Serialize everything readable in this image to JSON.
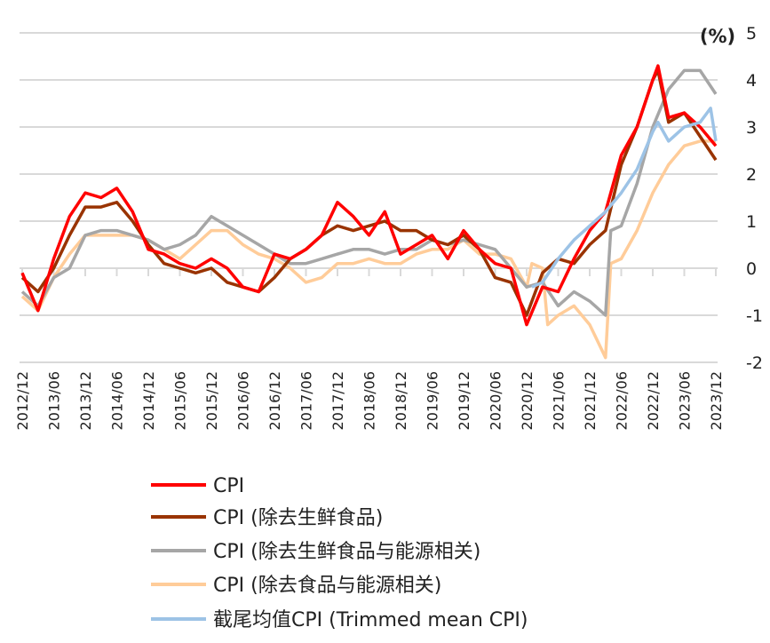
{
  "chart_data": {
    "type": "line",
    "unit_label": "(%)",
    "ylim": [
      -2,
      5
    ],
    "yticks": [
      5,
      4,
      3,
      2,
      1,
      0,
      -1,
      -2
    ],
    "xlim": [
      "2012/12",
      "2023/12"
    ],
    "xticks": [
      "2012/12",
      "2013/06",
      "2013/12",
      "2014/06",
      "2014/12",
      "2015/06",
      "2015/12",
      "2016/06",
      "2016/12",
      "2017/06",
      "2017/12",
      "2018/06",
      "2018/12",
      "2019/06",
      "2019/12",
      "2020/06",
      "2020/12",
      "2021/06",
      "2021/12",
      "2022/06",
      "2022/12",
      "2023/06",
      "2023/12"
    ],
    "grid": true,
    "legend_position": "bottom",
    "series": [
      {
        "name": "CPI",
        "color": "#ff0000",
        "x": [
          "2012/12",
          "2013/03",
          "2013/06",
          "2013/09",
          "2013/12",
          "2014/03",
          "2014/06",
          "2014/09",
          "2014/12",
          "2015/03",
          "2015/06",
          "2015/09",
          "2015/12",
          "2016/03",
          "2016/06",
          "2016/09",
          "2016/12",
          "2017/03",
          "2017/06",
          "2017/09",
          "2017/12",
          "2018/03",
          "2018/06",
          "2018/09",
          "2018/12",
          "2019/03",
          "2019/06",
          "2019/09",
          "2019/12",
          "2020/03",
          "2020/06",
          "2020/09",
          "2020/12",
          "2021/03",
          "2021/06",
          "2021/09",
          "2021/12",
          "2022/03",
          "2022/06",
          "2022/09",
          "2022/12",
          "2023/01",
          "2023/03",
          "2023/06",
          "2023/09",
          "2023/12"
        ],
        "y": [
          -0.1,
          -0.9,
          0.2,
          1.1,
          1.6,
          1.5,
          1.7,
          1.2,
          0.4,
          0.3,
          0.1,
          0.0,
          0.2,
          0.0,
          -0.4,
          -0.5,
          0.3,
          0.2,
          0.4,
          0.7,
          1.4,
          1.1,
          0.7,
          1.2,
          0.3,
          0.5,
          0.7,
          0.2,
          0.8,
          0.4,
          0.1,
          0.0,
          -1.2,
          -0.4,
          -0.5,
          0.2,
          0.8,
          1.2,
          2.4,
          3.0,
          4.0,
          4.3,
          3.2,
          3.3,
          3.0,
          2.6
        ]
      },
      {
        "name": "CPI (除去生鲜食品)",
        "color": "#993300",
        "x": [
          "2012/12",
          "2013/03",
          "2013/06",
          "2013/09",
          "2013/12",
          "2014/03",
          "2014/06",
          "2014/09",
          "2014/12",
          "2015/03",
          "2015/06",
          "2015/09",
          "2015/12",
          "2016/03",
          "2016/06",
          "2016/09",
          "2016/12",
          "2017/03",
          "2017/06",
          "2017/09",
          "2017/12",
          "2018/03",
          "2018/06",
          "2018/09",
          "2018/12",
          "2019/03",
          "2019/06",
          "2019/09",
          "2019/12",
          "2020/03",
          "2020/06",
          "2020/09",
          "2020/12",
          "2021/03",
          "2021/06",
          "2021/09",
          "2021/12",
          "2022/03",
          "2022/06",
          "2022/09",
          "2022/12",
          "2023/01",
          "2023/03",
          "2023/06",
          "2023/09",
          "2023/12"
        ],
        "y": [
          -0.2,
          -0.5,
          0.0,
          0.7,
          1.3,
          1.3,
          1.4,
          1.0,
          0.5,
          0.1,
          0.0,
          -0.1,
          0.0,
          -0.3,
          -0.4,
          -0.5,
          -0.2,
          0.2,
          0.4,
          0.7,
          0.9,
          0.8,
          0.9,
          1.0,
          0.8,
          0.8,
          0.6,
          0.5,
          0.7,
          0.4,
          -0.2,
          -0.3,
          -1.0,
          -0.1,
          0.2,
          0.1,
          0.5,
          0.8,
          2.2,
          3.0,
          4.0,
          4.2,
          3.1,
          3.3,
          2.8,
          2.3
        ]
      },
      {
        "name": "CPI (除去生鲜食品与能源相关)",
        "color": "#a6a6a6",
        "x": [
          "2012/12",
          "2013/03",
          "2013/06",
          "2013/09",
          "2013/12",
          "2014/03",
          "2014/06",
          "2014/09",
          "2014/12",
          "2015/03",
          "2015/06",
          "2015/09",
          "2015/12",
          "2016/03",
          "2016/06",
          "2016/09",
          "2016/12",
          "2017/03",
          "2017/06",
          "2017/09",
          "2017/12",
          "2018/03",
          "2018/06",
          "2018/09",
          "2018/12",
          "2019/03",
          "2019/06",
          "2019/09",
          "2019/12",
          "2020/03",
          "2020/06",
          "2020/09",
          "2020/12",
          "2021/03",
          "2021/06",
          "2021/09",
          "2021/12",
          "2022/03",
          "2022/04",
          "2022/06",
          "2022/09",
          "2022/12",
          "2023/03",
          "2023/06",
          "2023/09",
          "2023/12"
        ],
        "y": [
          -0.5,
          -0.8,
          -0.2,
          0.0,
          0.7,
          0.8,
          0.8,
          0.7,
          0.6,
          0.4,
          0.5,
          0.7,
          1.1,
          0.9,
          0.7,
          0.5,
          0.3,
          0.1,
          0.1,
          0.2,
          0.3,
          0.4,
          0.4,
          0.3,
          0.4,
          0.4,
          0.6,
          0.5,
          0.6,
          0.5,
          0.4,
          0.0,
          -0.4,
          -0.3,
          -0.8,
          -0.5,
          -0.7,
          -1.0,
          0.8,
          0.9,
          1.8,
          3.0,
          3.8,
          4.2,
          4.2,
          3.7
        ]
      },
      {
        "name": "CPI (除去食品与能源相关)",
        "color": "#ffcc99",
        "x": [
          "2012/12",
          "2013/03",
          "2013/06",
          "2013/09",
          "2013/12",
          "2014/03",
          "2014/06",
          "2014/09",
          "2014/12",
          "2015/03",
          "2015/06",
          "2015/09",
          "2015/12",
          "2016/03",
          "2016/06",
          "2016/09",
          "2016/12",
          "2017/03",
          "2017/06",
          "2017/09",
          "2017/12",
          "2018/03",
          "2018/06",
          "2018/09",
          "2018/12",
          "2019/03",
          "2019/06",
          "2019/09",
          "2019/12",
          "2020/03",
          "2020/06",
          "2020/09",
          "2020/12",
          "2021/01",
          "2021/03",
          "2021/04",
          "2021/06",
          "2021/09",
          "2021/12",
          "2022/03",
          "2022/04",
          "2022/06",
          "2022/09",
          "2022/12",
          "2023/03",
          "2023/06",
          "2023/09",
          "2023/12"
        ],
        "y": [
          -0.6,
          -0.9,
          -0.2,
          0.3,
          0.7,
          0.7,
          0.7,
          0.7,
          0.6,
          0.4,
          0.2,
          0.5,
          0.8,
          0.8,
          0.5,
          0.3,
          0.2,
          0.0,
          -0.3,
          -0.2,
          0.1,
          0.1,
          0.2,
          0.1,
          0.1,
          0.3,
          0.4,
          0.4,
          0.6,
          0.3,
          0.3,
          0.2,
          -0.4,
          0.1,
          0.0,
          -1.2,
          -1.0,
          -0.8,
          -1.2,
          -1.9,
          0.1,
          0.2,
          0.8,
          1.6,
          2.2,
          2.6,
          2.7,
          2.7
        ]
      },
      {
        "name": "截尾均值CPI (Trimmed mean CPI)",
        "color": "#9dc3e6",
        "x": [
          "2021/01",
          "2021/03",
          "2021/06",
          "2021/09",
          "2021/12",
          "2022/03",
          "2022/06",
          "2022/09",
          "2022/12",
          "2023/01",
          "2023/03",
          "2023/06",
          "2023/09",
          "2023/11",
          "2023/12"
        ],
        "y": [
          -0.4,
          -0.3,
          0.2,
          0.6,
          0.9,
          1.2,
          1.6,
          2.1,
          2.9,
          3.1,
          2.7,
          3.0,
          3.1,
          3.4,
          2.7
        ]
      }
    ]
  }
}
